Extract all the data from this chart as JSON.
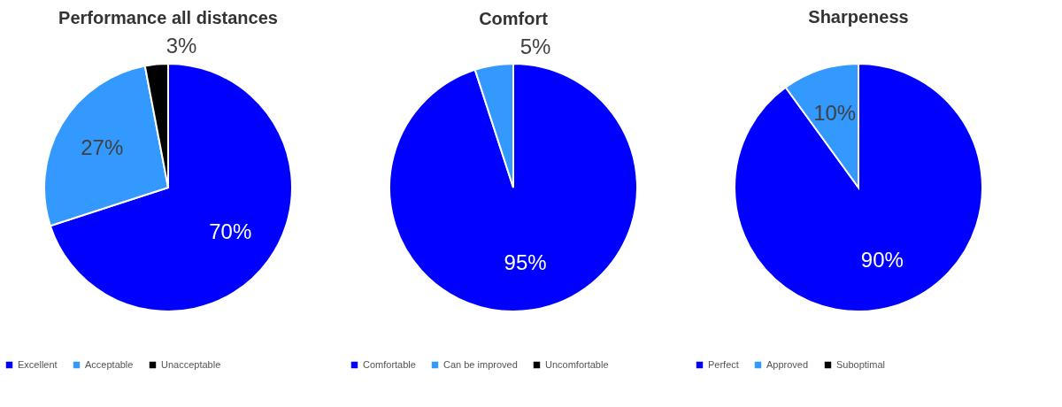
{
  "chart_data": [
    {
      "type": "pie",
      "title": "Performance all distances",
      "categories": [
        "Excellent",
        "Acceptable",
        "Unacceptable"
      ],
      "values": [
        70,
        27,
        3
      ],
      "colors": [
        "#0000ff",
        "#3399ff",
        "#000000"
      ],
      "value_labels": [
        "70%",
        "27%",
        "3%"
      ],
      "legend": "bottom"
    },
    {
      "type": "pie",
      "title": "Comfort",
      "categories": [
        "Comfortable",
        "Can be improved",
        "Uncomfortable"
      ],
      "values": [
        95,
        5,
        0
      ],
      "colors": [
        "#0000ff",
        "#3399ff",
        "#000000"
      ],
      "value_labels": [
        "95%",
        "5%",
        null
      ],
      "legend": "bottom"
    },
    {
      "type": "pie",
      "title": "Sharpeness",
      "categories": [
        "Perfect",
        "Approved",
        "Suboptimal"
      ],
      "values": [
        90,
        10,
        0
      ],
      "colors": [
        "#0000ff",
        "#3399ff",
        "#000000"
      ],
      "value_labels": [
        "90%",
        "10%",
        null
      ],
      "legend": "bottom"
    }
  ]
}
